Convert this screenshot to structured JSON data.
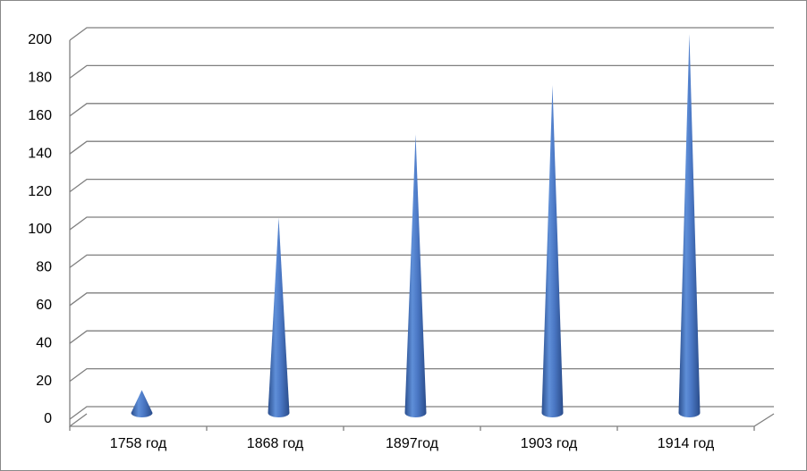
{
  "chart_data": {
    "type": "cone",
    "categories": [
      "1758 год",
      "1868 год",
      "1897год",
      "1903 год",
      "1914 год"
    ],
    "values": [
      12,
      103,
      147,
      173,
      200
    ],
    "color": "#4a77c4",
    "ylim": [
      0,
      200
    ],
    "yticks": [
      0,
      20,
      40,
      60,
      80,
      100,
      120,
      140,
      160,
      180,
      200
    ],
    "grid": true
  }
}
